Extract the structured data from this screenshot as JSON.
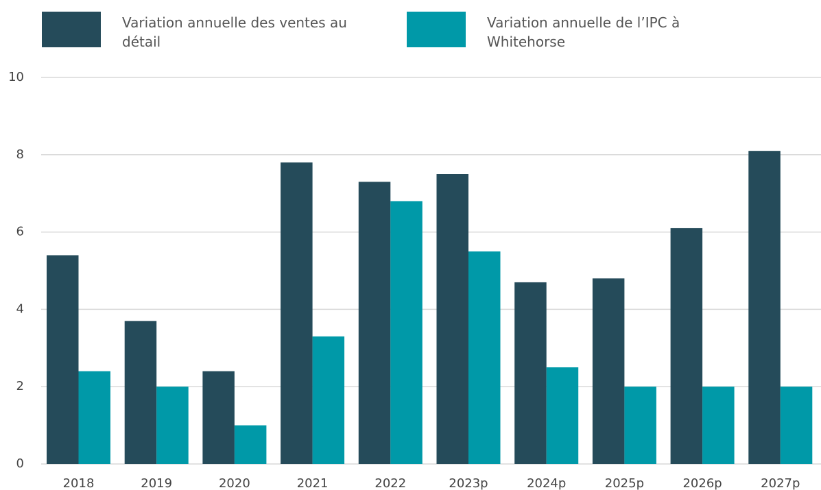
{
  "chart_data": {
    "type": "bar",
    "categories": [
      "2018",
      "2019",
      "2020",
      "2021",
      "2022",
      "2023p",
      "2024p",
      "2025p",
      "2026p",
      "2027p"
    ],
    "series": [
      {
        "name": "Variation annuelle des ventes au détail",
        "color": "#254b5a",
        "values": [
          5.4,
          3.7,
          2.4,
          7.8,
          7.3,
          7.5,
          4.7,
          4.8,
          6.1,
          8.1
        ]
      },
      {
        "name": "Variation annuelle de l’IPC à Whitehorse",
        "color": "#0099a8",
        "values": [
          2.4,
          2.0,
          1.0,
          3.3,
          6.8,
          5.5,
          2.5,
          2.0,
          2.0,
          2.0
        ]
      }
    ],
    "ylim": [
      0,
      10
    ],
    "yticks": [
      0,
      2,
      4,
      6,
      8,
      10
    ],
    "grid": true,
    "legend": "top"
  }
}
